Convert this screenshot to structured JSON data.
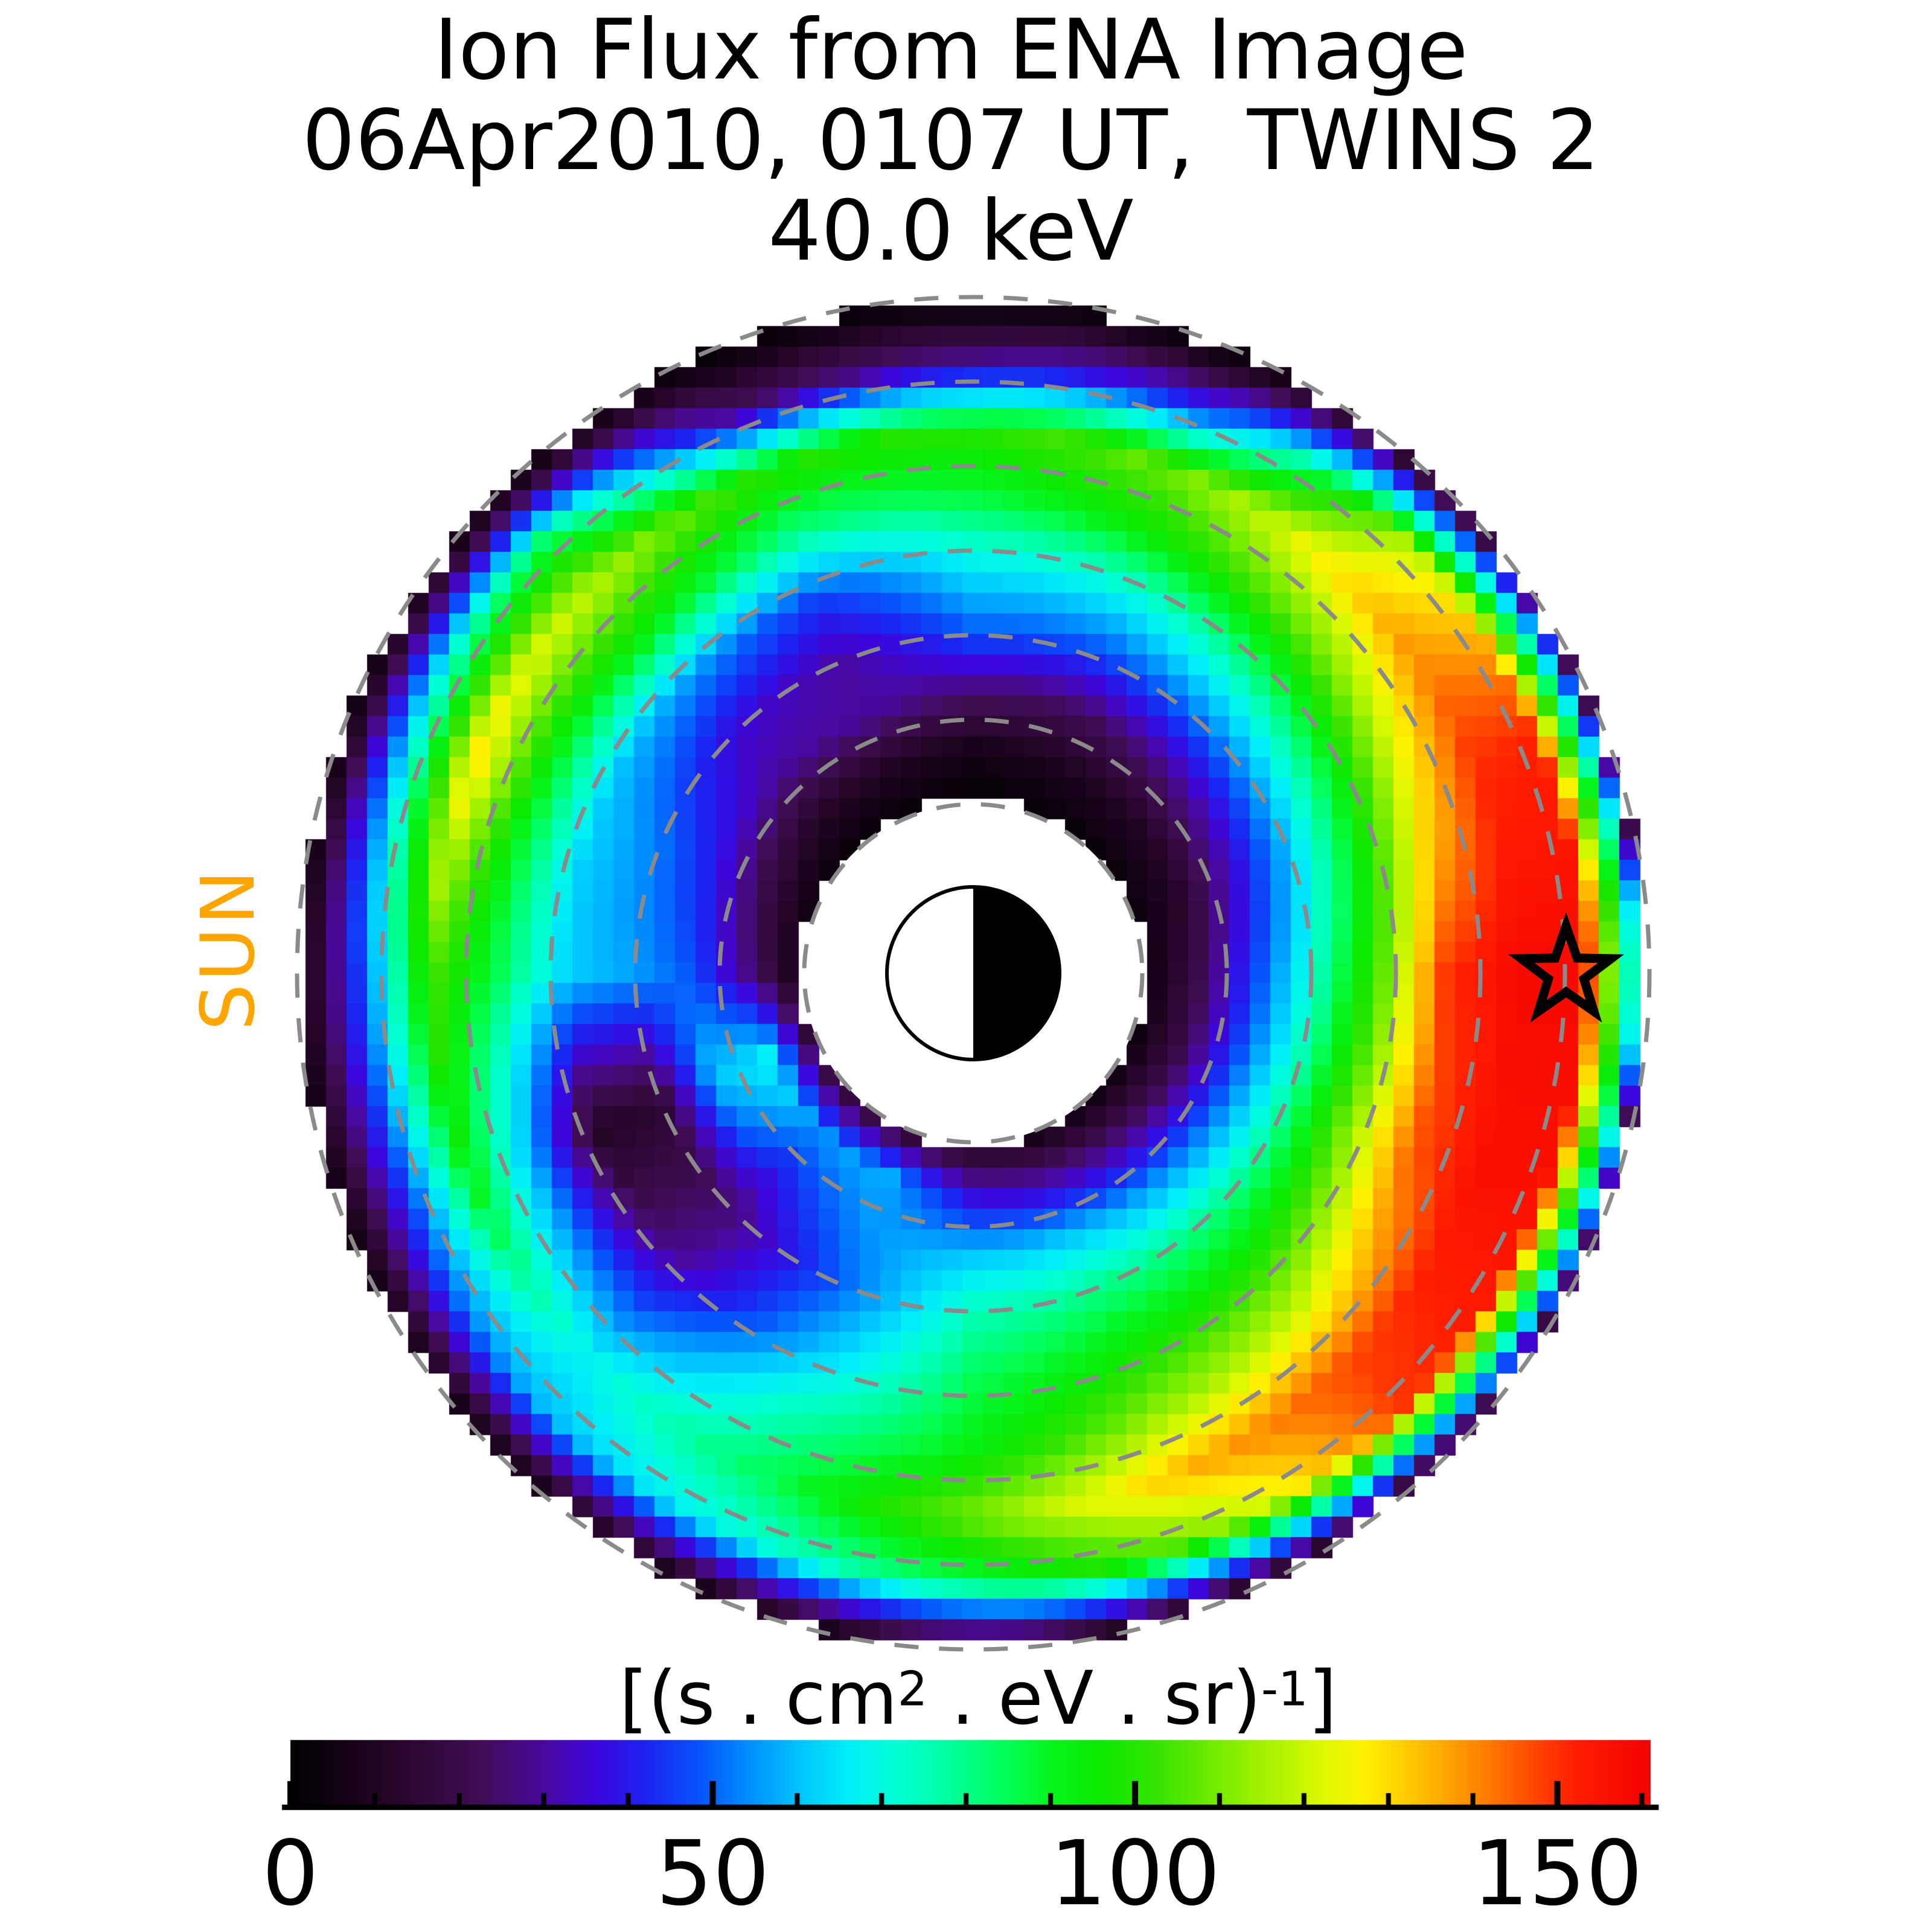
{
  "title": {
    "line1": "Ion Flux from ENA Image",
    "line2": "06Apr2010, 0107 UT,  TWINS 2",
    "line3": "40.0 keV"
  },
  "sun_label": "SUN",
  "colorbar": {
    "unit_label": {
      "p1": "[(s . cm",
      "sup1": "2",
      "p2": " . eV . sr)",
      "sup2": "-1",
      "p3": "]"
    },
    "vmin": 0,
    "vmax": 161,
    "major_ticks": [
      0,
      50,
      100,
      150
    ],
    "minor_tick_step": 10
  },
  "colormap_stops": [
    {
      "v": 0,
      "c": "#000000"
    },
    {
      "v": 12,
      "c": "#250528"
    },
    {
      "v": 22,
      "c": "#3F0C52"
    },
    {
      "v": 30,
      "c": "#49089E"
    },
    {
      "v": 36,
      "c": "#3C06DC"
    },
    {
      "v": 42,
      "c": "#1C22F0"
    },
    {
      "v": 48,
      "c": "#0850FA"
    },
    {
      "v": 54,
      "c": "#008CFF"
    },
    {
      "v": 60,
      "c": "#00C2FF"
    },
    {
      "v": 66,
      "c": "#00EEF8"
    },
    {
      "v": 72,
      "c": "#00FFD2"
    },
    {
      "v": 78,
      "c": "#00FF9E"
    },
    {
      "v": 84,
      "c": "#02FF5E"
    },
    {
      "v": 90,
      "c": "#06F51E"
    },
    {
      "v": 96,
      "c": "#0CE800"
    },
    {
      "v": 103,
      "c": "#38E400"
    },
    {
      "v": 110,
      "c": "#78EC00"
    },
    {
      "v": 116,
      "c": "#AAF200"
    },
    {
      "v": 122,
      "c": "#DCF800"
    },
    {
      "v": 127,
      "c": "#FFF200"
    },
    {
      "v": 132,
      "c": "#FFCC00"
    },
    {
      "v": 137,
      "c": "#FFA400"
    },
    {
      "v": 142,
      "c": "#FF7800"
    },
    {
      "v": 147,
      "c": "#FF4A00"
    },
    {
      "v": 152,
      "c": "#FF1E00"
    },
    {
      "v": 161,
      "c": "#F30000"
    }
  ],
  "chart_data": {
    "type": "heatmap",
    "subtype": "polar_ion_flux_map",
    "title": "Ion Flux from ENA Image, 06Apr2010, 0107 UT, TWINS 2, 40.0 keV",
    "units": "[(s . cm2 . eV . sr)-1]",
    "value_range": [
      0,
      161
    ],
    "sun_direction": "left",
    "dashed_rings_re": [
      2,
      3,
      4,
      5,
      6,
      7,
      8
    ],
    "masked_inner_radius_re": 2.0,
    "outer_radius_re": 8.0,
    "earth_symbol": {
      "description": "half white / half black circle at origin",
      "dark_side": "right"
    },
    "star_marker": {
      "radius_re": 7.0,
      "angle_deg": 0,
      "style": "open black star"
    },
    "flux_grid": {
      "angle_convention": "degrees CCW from +x (right side), screen up = 90",
      "angles_deg": [
        0,
        22.5,
        45,
        67.5,
        90,
        112.5,
        135,
        157.5,
        180,
        202.5,
        225,
        247.5,
        270,
        292.5,
        315,
        337.5
      ],
      "radii_re": [
        2.0,
        2.6,
        3.3,
        4.0,
        4.8,
        5.6,
        6.4,
        7.2,
        7.8,
        8.0
      ],
      "values": [
        [
          3,
          18,
          45,
          72,
          105,
          150,
          158,
          158,
          70,
          8
        ],
        [
          3,
          12,
          35,
          60,
          92,
          126,
          150,
          152,
          55,
          6
        ],
        [
          2,
          10,
          28,
          52,
          80,
          108,
          132,
          118,
          40,
          5
        ],
        [
          2,
          8,
          22,
          45,
          68,
          95,
          110,
          45,
          8,
          3
        ],
        [
          1,
          6,
          25,
          48,
          66,
          86,
          100,
          30,
          6,
          2
        ],
        [
          2,
          10,
          30,
          30,
          46,
          80,
          100,
          25,
          5,
          2
        ],
        [
          2,
          12,
          30,
          36,
          55,
          95,
          118,
          85,
          18,
          4
        ],
        [
          3,
          18,
          40,
          52,
          62,
          92,
          130,
          65,
          14,
          4
        ],
        [
          4,
          25,
          48,
          56,
          62,
          85,
          105,
          50,
          12,
          4
        ],
        [
          10,
          68,
          60,
          14,
          10,
          55,
          92,
          45,
          12,
          4
        ],
        [
          14,
          55,
          40,
          26,
          30,
          48,
          68,
          60,
          16,
          4
        ],
        [
          12,
          58,
          55,
          50,
          60,
          75,
          85,
          70,
          20,
          4
        ],
        [
          8,
          35,
          60,
          75,
          85,
          92,
          110,
          85,
          24,
          5
        ],
        [
          5,
          30,
          60,
          80,
          95,
          112,
          135,
          110,
          30,
          5
        ],
        [
          4,
          25,
          55,
          80,
          100,
          122,
          148,
          150,
          42,
          5
        ],
        [
          3,
          20,
          50,
          78,
          112,
          145,
          156,
          156,
          60,
          6
        ]
      ]
    }
  }
}
